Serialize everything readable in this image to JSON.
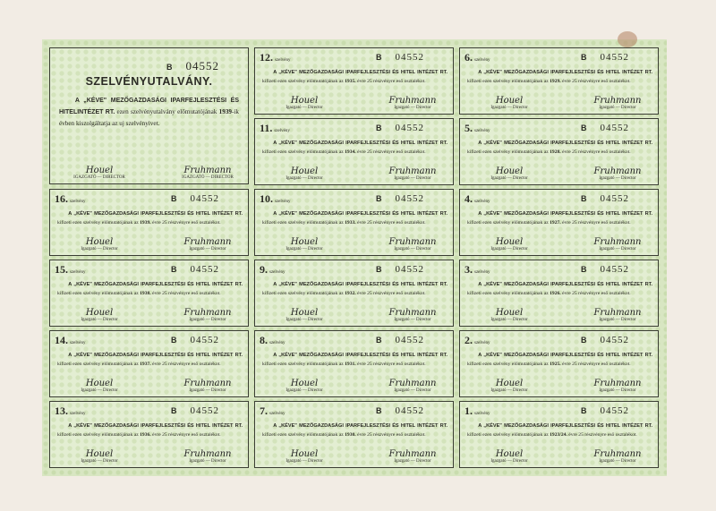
{
  "series": "B",
  "serial": "04552",
  "talon": {
    "title": "SZELVÉNYUTALVÁNY.",
    "text_prefix": "A „KÉVE\" MEZŐGAZDASÁGI IPARFEJLESZTÉSI ÉS HITELINTÉZET RT.",
    "text_middle": "ezen szelvényutalvány előmutatójának",
    "year": "1939",
    "text_suffix": "-ik évben kiszolgáltatja az uj szelvényivet.",
    "sig_label_1": "IGAZGATÓ — DIRECTOR",
    "sig_label_2": "IGAZGATÓ — DIRECTOR"
  },
  "coupon_word": "szelvény",
  "coupon_text_caps": "A „KÉVE\" MEZŐGAZDASÁGI IPARFEJLESZTÉSI ÉS HITEL INTÉZET RT.",
  "coupon_text_a": "kifizeti ezen szelvény előmutatójának az",
  "coupon_text_b": "évre 25 részvényre eső osztalékot.",
  "signature_1": "Houel",
  "signature_2": "Fruhmann",
  "sig_label": "Igazgató — Director",
  "coupons": [
    {
      "n": "12.",
      "year": "1935."
    },
    {
      "n": "6.",
      "year": "1929."
    },
    {
      "n": "11.",
      "year": "1934."
    },
    {
      "n": "5.",
      "year": "1928."
    },
    {
      "n": "16.",
      "year": "1939."
    },
    {
      "n": "10.",
      "year": "1933."
    },
    {
      "n": "4.",
      "year": "1927."
    },
    {
      "n": "15.",
      "year": "1938."
    },
    {
      "n": "9.",
      "year": "1932."
    },
    {
      "n": "3.",
      "year": "1926."
    },
    {
      "n": "14.",
      "year": "1937."
    },
    {
      "n": "8.",
      "year": "1931."
    },
    {
      "n": "2.",
      "year": "1925."
    },
    {
      "n": "13.",
      "year": "1936."
    },
    {
      "n": "7.",
      "year": "1930."
    },
    {
      "n": "1.",
      "year": "1923/24."
    }
  ]
}
